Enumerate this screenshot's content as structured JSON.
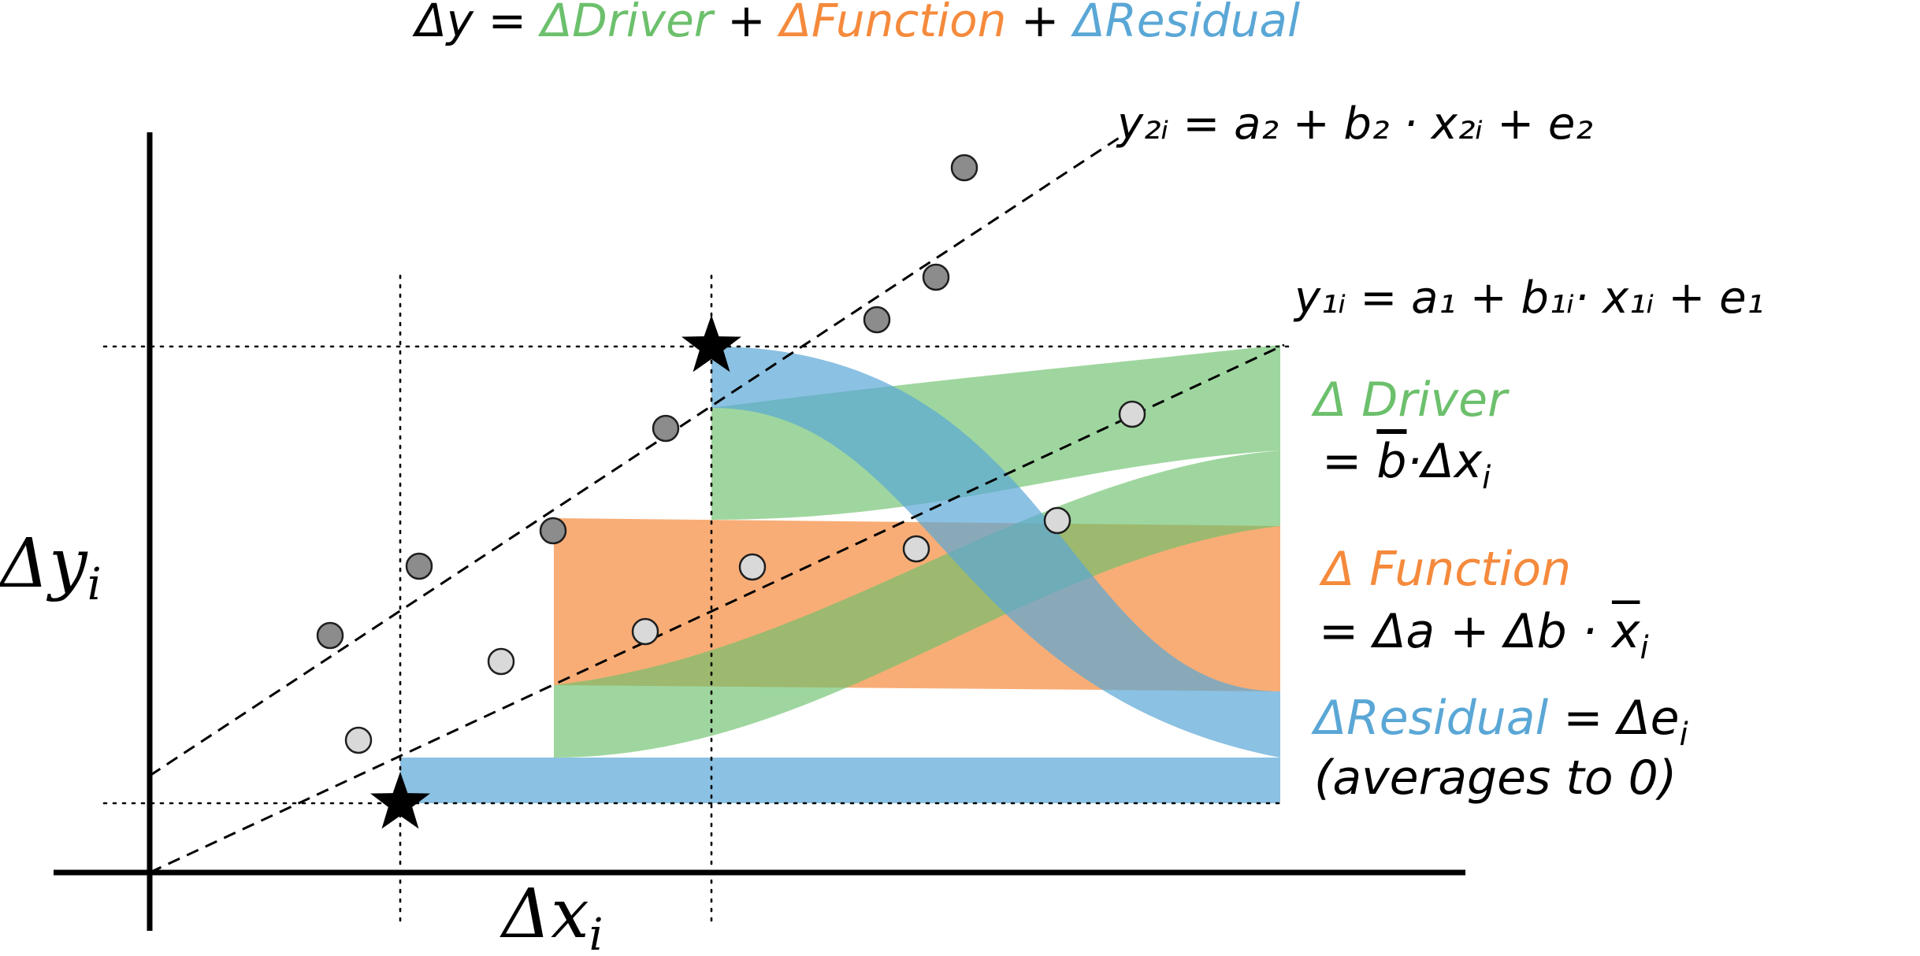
{
  "title": {
    "lhs": "Δy",
    "eq": " = ",
    "t1": "ΔDriver",
    "plus1": " + ",
    "t2": "ΔFunction",
    "plus2": " + ",
    "t3": "ΔResidual"
  },
  "line2_label": "y₂ᵢ = a₂ + b₂ · x₂ᵢ + e₂",
  "line1_label": "y₁ᵢ = a₁ + b₁ᵢ· x₁ᵢ + e₁",
  "y_axis_label": {
    "main": "Δy",
    "sub": "i"
  },
  "x_axis_label": {
    "main": "Δx",
    "sub": "i"
  },
  "legend": {
    "driver_title": "Δ Driver",
    "driver_eq_a": "= ",
    "driver_eq_b": "b",
    "driver_eq_c": "·Δx",
    "driver_eq_sub": "i",
    "function_title": "Δ Function",
    "function_eq_a": "= Δa + Δb · ",
    "function_eq_b": "x",
    "function_eq_sub": "i",
    "residual_title": "ΔResidual",
    "residual_eq_a": " = Δe",
    "residual_eq_sub": "i",
    "residual_note": "(averages to 0)"
  },
  "colors": {
    "driver": "#6cc06c",
    "function": "#f58a3c",
    "residual": "#5aa7d6",
    "text": "#000000"
  },
  "icons": [
    "star-icon"
  ]
}
